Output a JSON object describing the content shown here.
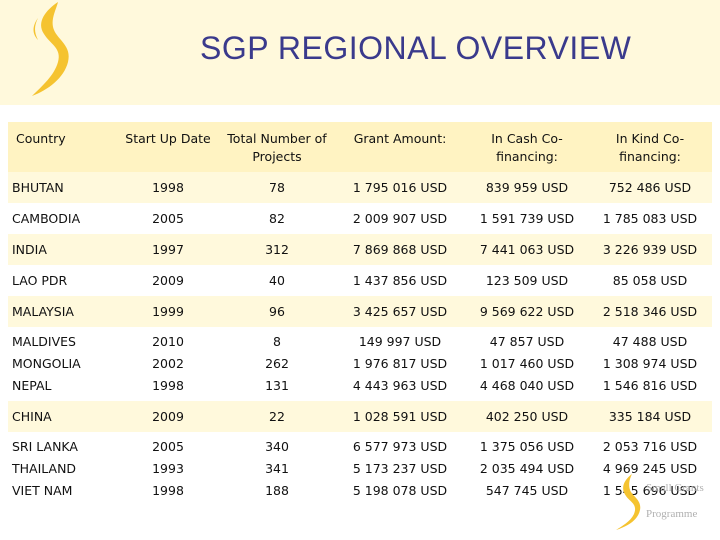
{
  "title": "SGP REGIONAL OVERVIEW",
  "colors": {
    "accent": "#f5c330",
    "title": "#3a3a8c",
    "band": "#fff9dc",
    "header": "#fff3c2"
  },
  "table": {
    "headers": [
      "Country",
      "Start Up Date",
      "Total Number of Projects",
      "Grant Amount:",
      "In Cash Co-financing:",
      "In Kind Co-financing:"
    ],
    "rows": [
      {
        "countries": [
          "BHUTAN"
        ],
        "dates": [
          "1998"
        ],
        "projects": [
          "78"
        ],
        "grants": [
          "1 795 016 USD"
        ],
        "cash": [
          "839 959 USD"
        ],
        "kind": [
          "752 486 USD"
        ]
      },
      {
        "countries": [
          "CAMBODIA"
        ],
        "dates": [
          "2005"
        ],
        "projects": [
          "82"
        ],
        "grants": [
          "2 009 907 USD"
        ],
        "cash": [
          "1 591 739 USD"
        ],
        "kind": [
          "1 785 083 USD"
        ]
      },
      {
        "countries": [
          "INDIA"
        ],
        "dates": [
          "1997"
        ],
        "projects": [
          "312"
        ],
        "grants": [
          "7 869 868 USD"
        ],
        "cash": [
          "7 441 063 USD"
        ],
        "kind": [
          "3 226 939 USD"
        ]
      },
      {
        "countries": [
          "LAO PDR"
        ],
        "dates": [
          "2009"
        ],
        "projects": [
          "40"
        ],
        "grants": [
          "1 437 856 USD"
        ],
        "cash": [
          "123 509 USD"
        ],
        "kind": [
          "85 058 USD"
        ]
      },
      {
        "countries": [
          "MALAYSIA"
        ],
        "dates": [
          "1999"
        ],
        "projects": [
          "96"
        ],
        "grants": [
          "3 425 657 USD"
        ],
        "cash": [
          "9 569 622 USD"
        ],
        "kind": [
          "2 518 346 USD"
        ]
      },
      {
        "countries": [
          "MALDIVES",
          "MONGOLIA",
          "NEPAL"
        ],
        "dates": [
          "2010",
          "2002",
          "1998"
        ],
        "projects": [
          "8",
          "262",
          "131"
        ],
        "grants": [
          "149 997 USD",
          "1 976 817 USD",
          "4 443 963 USD"
        ],
        "cash": [
          "47 857 USD",
          "1 017 460 USD",
          "4 468 040 USD"
        ],
        "kind": [
          "47 488 USD",
          "1 308 974 USD",
          "1 546 816 USD"
        ]
      },
      {
        "countries": [
          "CHINA"
        ],
        "dates": [
          "2009"
        ],
        "projects": [
          "22"
        ],
        "grants": [
          "1 028 591 USD"
        ],
        "cash": [
          "402 250 USD"
        ],
        "kind": [
          "335 184 USD"
        ]
      },
      {
        "countries": [
          "SRI LANKA",
          "THAILAND",
          "VIET NAM"
        ],
        "dates": [
          "2005",
          "1993",
          "1998"
        ],
        "projects": [
          "340",
          "341",
          "188"
        ],
        "grants": [
          "6 577 973 USD",
          "5 173 237 USD",
          "5 198 078 USD"
        ],
        "cash": [
          "1 375 056 USD",
          "2 035 494 USD",
          "547 745 USD"
        ],
        "kind": [
          "2 053 716 USD",
          "4 969 245 USD",
          "1 545 696 USD"
        ]
      }
    ]
  },
  "logo": {
    "lines": [
      "Small Grants",
      "Programme"
    ]
  }
}
